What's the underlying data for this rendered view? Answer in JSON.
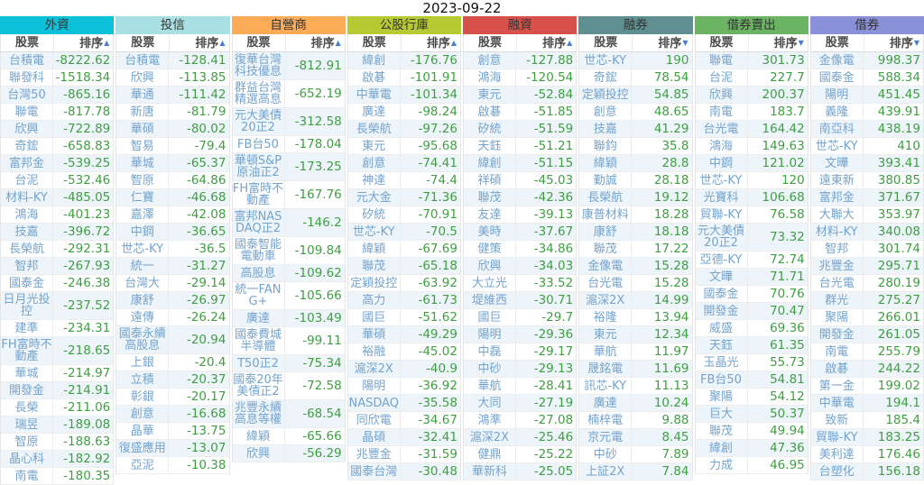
{
  "page": {
    "date": "2023-09-22"
  },
  "table": {
    "columns": {
      "stock": "股票",
      "rank": "排序"
    },
    "colors": {
      "name_link": "#74a3cd",
      "value_text": "#3f9e42",
      "sort_arrow": "#4b7bd5",
      "row_stripe": "#edf5fa"
    },
    "groups": [
      {
        "id": "foreign",
        "name": "外資",
        "header_color": "#0cc0da",
        "sort_arrow": "▲",
        "rows": [
          [
            "台積電",
            "-8222.62"
          ],
          [
            "聯發科",
            "-1518.34"
          ],
          [
            "台灣50",
            "-865.16"
          ],
          [
            "聯電",
            "-817.78"
          ],
          [
            "欣興",
            "-722.89"
          ],
          [
            "奇鋐",
            "-658.83"
          ],
          [
            "富邦金",
            "-539.25"
          ],
          [
            "台泥",
            "-532.46"
          ],
          [
            "材料-KY",
            "-485.05"
          ],
          [
            "鴻海",
            "-401.23"
          ],
          [
            "技嘉",
            "-396.72"
          ],
          [
            "長榮航",
            "-292.31"
          ],
          [
            "智邦",
            "-267.93"
          ],
          [
            "國泰金",
            "-246.38"
          ],
          [
            "日月光投控",
            "-237.52"
          ],
          [
            "建準",
            "-234.31"
          ],
          [
            "FH富時不動產",
            "-218.65"
          ],
          [
            "華城",
            "-214.97"
          ],
          [
            "開發金",
            "-214.91"
          ],
          [
            "長榮",
            "-211.06"
          ],
          [
            "瑞昱",
            "-189.08"
          ],
          [
            "智原",
            "-188.63"
          ],
          [
            "晶心科",
            "-182.92"
          ],
          [
            "南電",
            "-180.35"
          ]
        ]
      },
      {
        "id": "trust",
        "name": "投信",
        "header_color": "#a8e0e3",
        "sort_arrow": "▲",
        "rows": [
          [
            "台積電",
            "-128.41"
          ],
          [
            "欣興",
            "-113.85"
          ],
          [
            "華通",
            "-111.42"
          ],
          [
            "新唐",
            "-81.79"
          ],
          [
            "華碩",
            "-80.02"
          ],
          [
            "智易",
            "-79.4"
          ],
          [
            "華城",
            "-65.37"
          ],
          [
            "智原",
            "-64.86"
          ],
          [
            "仁寶",
            "-46.68"
          ],
          [
            "嘉澤",
            "-42.08"
          ],
          [
            "中鋼",
            "-36.65"
          ],
          [
            "世芯-KY",
            "-36.5"
          ],
          [
            "統一",
            "-31.27"
          ],
          [
            "台灣大",
            "-29.14"
          ],
          [
            "康舒",
            "-26.97"
          ],
          [
            "遠傳",
            "-26.24"
          ],
          [
            "國泰永續高股息",
            "-20.94"
          ],
          [
            "上銀",
            "-20.4"
          ],
          [
            "立積",
            "-20.37"
          ],
          [
            "彰銀",
            "-20.17"
          ],
          [
            "創意",
            "-16.68"
          ],
          [
            "晶華",
            "-13.75"
          ],
          [
            "復盛應用",
            "-13.07"
          ],
          [
            "亞泥",
            "-10.38"
          ]
        ]
      },
      {
        "id": "dealer",
        "name": "自營商",
        "header_color": "#fcab57",
        "sort_arrow": "▲",
        "rows": [
          [
            "復華台灣科技優息",
            "-812.91"
          ],
          [
            "群益台灣精選高息",
            "-652.19"
          ],
          [
            "元大美債20正2",
            "-312.58"
          ],
          [
            "FB台50",
            "-178.04"
          ],
          [
            "華頓S&P原油正2",
            "-173.25"
          ],
          [
            "FH富時不動產",
            "-167.76"
          ],
          [
            "富邦NASDAQ正2",
            "-146.2"
          ],
          [
            "國泰智能電動車",
            "-109.84"
          ],
          [
            "高股息",
            "-109.62"
          ],
          [
            "統一FANG+",
            "-105.66"
          ],
          [
            "廣達",
            "-103.49"
          ],
          [
            "國泰費城半導體",
            "-99.11"
          ],
          [
            "T50正2",
            "-75.34"
          ],
          [
            "國泰20年美債正2",
            "-72.58"
          ],
          [
            "兆豐永續高息等權",
            "-68.54"
          ],
          [
            "緯穎",
            "-65.66"
          ],
          [
            "欣興",
            "-56.29"
          ]
        ]
      },
      {
        "id": "public-banks",
        "name": "公股行庫",
        "header_color": "#b6cb32",
        "sort_arrow": "▲",
        "rows": [
          [
            "緯創",
            "-176.76"
          ],
          [
            "啟碁",
            "-101.91"
          ],
          [
            "中華電",
            "-101.34"
          ],
          [
            "廣達",
            "-98.24"
          ],
          [
            "長榮航",
            "-97.26"
          ],
          [
            "東元",
            "-95.68"
          ],
          [
            "創意",
            "-74.41"
          ],
          [
            "神達",
            "-74.4"
          ],
          [
            "元大金",
            "-71.36"
          ],
          [
            "矽統",
            "-70.91"
          ],
          [
            "世芯-KY",
            "-70.5"
          ],
          [
            "緯穎",
            "-67.69"
          ],
          [
            "聯茂",
            "-65.18"
          ],
          [
            "定穎投控",
            "-63.92"
          ],
          [
            "高力",
            "-61.73"
          ],
          [
            "國巨",
            "-51.62"
          ],
          [
            "華碩",
            "-49.29"
          ],
          [
            "裕融",
            "-45.02"
          ],
          [
            "滬深2X",
            "-40.9"
          ],
          [
            "陽明",
            "-36.92"
          ],
          [
            "NASDAQ",
            "-35.58"
          ],
          [
            "同欣電",
            "-34.67"
          ],
          [
            "晶碩",
            "-32.41"
          ],
          [
            "兆豐金",
            "-31.59"
          ],
          [
            "國泰台灣",
            "-30.48"
          ]
        ]
      },
      {
        "id": "margin",
        "name": "融資",
        "header_color": "#d75049",
        "sort_arrow": "▲",
        "rows": [
          [
            "創意",
            "-127.88"
          ],
          [
            "鴻海",
            "-120.54"
          ],
          [
            "東元",
            "-52.84"
          ],
          [
            "啟碁",
            "-51.85"
          ],
          [
            "矽統",
            "-51.59"
          ],
          [
            "天鈺",
            "-51.21"
          ],
          [
            "緯創",
            "-51.15"
          ],
          [
            "祥碩",
            "-45.03"
          ],
          [
            "聯茂",
            "-42.36"
          ],
          [
            "友達",
            "-39.13"
          ],
          [
            "美時",
            "-37.67"
          ],
          [
            "健策",
            "-34.86"
          ],
          [
            "欣興",
            "-34.03"
          ],
          [
            "大立光",
            "-33.52"
          ],
          [
            "堤維西",
            "-30.71"
          ],
          [
            "國巨",
            "-29.7"
          ],
          [
            "陽明",
            "-29.36"
          ],
          [
            "中磊",
            "-29.17"
          ],
          [
            "中砂",
            "-29.13"
          ],
          [
            "華航",
            "-28.41"
          ],
          [
            "大同",
            "-27.19"
          ],
          [
            "鴻準",
            "-27.08"
          ],
          [
            "滬深2X",
            "-25.46"
          ],
          [
            "健鼎",
            "-25.22"
          ],
          [
            "華新科",
            "-25.05"
          ]
        ]
      },
      {
        "id": "short-sale",
        "name": "融券",
        "header_color": "#5f8f91",
        "sort_arrow": "▼",
        "rows": [
          [
            "世芯-KY",
            "190"
          ],
          [
            "奇鋐",
            "78.54"
          ],
          [
            "定穎投控",
            "54.85"
          ],
          [
            "創意",
            "48.65"
          ],
          [
            "技嘉",
            "41.29"
          ],
          [
            "聯鈞",
            "35.8"
          ],
          [
            "緯穎",
            "28.8"
          ],
          [
            "勤誠",
            "28.18"
          ],
          [
            "長榮航",
            "19.12"
          ],
          [
            "康普材料",
            "18.28"
          ],
          [
            "康舒",
            "18.18"
          ],
          [
            "聯茂",
            "17.22"
          ],
          [
            "金像電",
            "15.28"
          ],
          [
            "台光電",
            "15.28"
          ],
          [
            "滬深2X",
            "14.99"
          ],
          [
            "裕隆",
            "13.94"
          ],
          [
            "東元",
            "12.34"
          ],
          [
            "華航",
            "11.97"
          ],
          [
            "晟銘電",
            "11.69"
          ],
          [
            "訊芯-KY",
            "11.13"
          ],
          [
            "廣達",
            "10.24"
          ],
          [
            "楠梓電",
            "9.88"
          ],
          [
            "京元電",
            "8.45"
          ],
          [
            "中砂",
            "7.89"
          ],
          [
            "上証2X",
            "7.84"
          ]
        ]
      },
      {
        "id": "sbl-sell",
        "name": "借券賣出",
        "header_color": "#6ab464",
        "sort_arrow": "▼",
        "rows": [
          [
            "聯電",
            "301.73"
          ],
          [
            "台泥",
            "227.7"
          ],
          [
            "欣興",
            "200.37"
          ],
          [
            "南電",
            "183.7"
          ],
          [
            "台光電",
            "164.42"
          ],
          [
            "鴻海",
            "149.63"
          ],
          [
            "中鋼",
            "121.02"
          ],
          [
            "世芯-KY",
            "120"
          ],
          [
            "光寶科",
            "106.68"
          ],
          [
            "貿聯-KY",
            "76.58"
          ],
          [
            "元大美債20正2",
            "73.32"
          ],
          [
            "亞德-KY",
            "72.74"
          ],
          [
            "文曄",
            "71.71"
          ],
          [
            "國泰金",
            "70.76"
          ],
          [
            "開發金",
            "70.47"
          ],
          [
            "威盛",
            "69.36"
          ],
          [
            "天鈺",
            "61.35"
          ],
          [
            "玉晶光",
            "55.73"
          ],
          [
            "FB台50",
            "54.81"
          ],
          [
            "聚陽",
            "54.12"
          ],
          [
            "巨大",
            "50.37"
          ],
          [
            "聯茂",
            "49.94"
          ],
          [
            "緯創",
            "47.36"
          ],
          [
            "力成",
            "46.95"
          ]
        ]
      },
      {
        "id": "sbl",
        "name": "借券",
        "header_color": "#8a91d8",
        "sort_arrow": "▼",
        "rows": [
          [
            "金像電",
            "998.37"
          ],
          [
            "國泰金",
            "588.34"
          ],
          [
            "陽明",
            "451.45"
          ],
          [
            "義隆",
            "439.91"
          ],
          [
            "南亞科",
            "438.19"
          ],
          [
            "世芯-KY",
            "410"
          ],
          [
            "文曄",
            "393.41"
          ],
          [
            "遠東新",
            "380.85"
          ],
          [
            "富邦金",
            "371.67"
          ],
          [
            "大聯大",
            "353.97"
          ],
          [
            "材料-KY",
            "340.08"
          ],
          [
            "智邦",
            "301.74"
          ],
          [
            "兆豐金",
            "295.71"
          ],
          [
            "台光電",
            "280.19"
          ],
          [
            "群光",
            "275.27"
          ],
          [
            "聚陽",
            "266.01"
          ],
          [
            "開發金",
            "261.05"
          ],
          [
            "南電",
            "255.79"
          ],
          [
            "啟碁",
            "244.22"
          ],
          [
            "第一金",
            "199.02"
          ],
          [
            "中華電",
            "194.1"
          ],
          [
            "致新",
            "185.4"
          ],
          [
            "貿聯-KY",
            "183.25"
          ],
          [
            "美利達",
            "176.46"
          ],
          [
            "台塑化",
            "156.18"
          ]
        ]
      }
    ]
  }
}
